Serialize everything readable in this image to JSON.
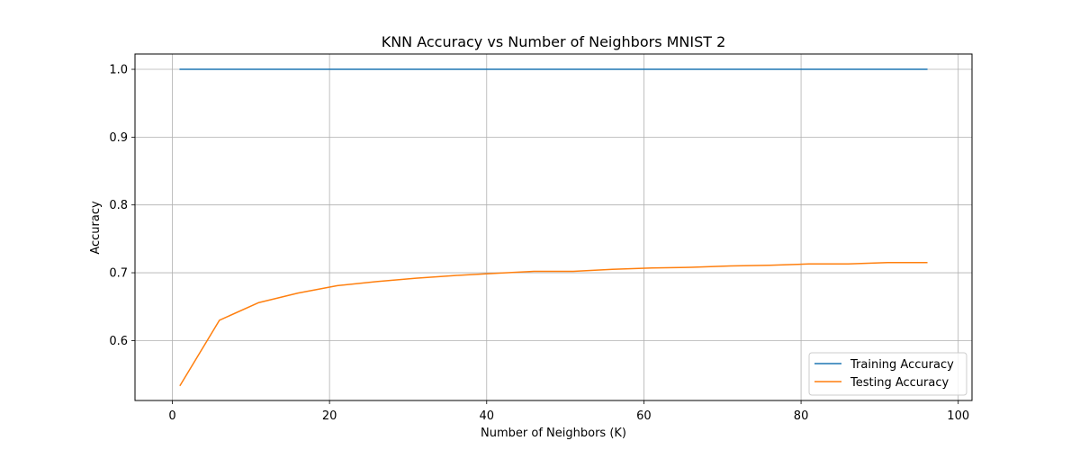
{
  "chart_data": {
    "type": "line",
    "title": "KNN Accuracy vs Number of Neighbors MNIST 2",
    "xlabel": "Number of Neighbors (K)",
    "ylabel": "Accuracy",
    "xlim": [
      -4.75,
      101.75
    ],
    "ylim": [
      0.5116,
      1.0226
    ],
    "xticks": [
      0,
      20,
      40,
      60,
      80,
      100
    ],
    "yticks": [
      0.6,
      0.7,
      0.8,
      0.9,
      1.0
    ],
    "xtick_labels": [
      "0",
      "20",
      "40",
      "60",
      "80",
      "100"
    ],
    "ytick_labels": [
      "0.6",
      "0.7",
      "0.8",
      "0.9",
      "1.0"
    ],
    "grid": true,
    "legend_position": "lower-right",
    "x": [
      1,
      6,
      11,
      16,
      21,
      26,
      31,
      36,
      41,
      46,
      51,
      56,
      61,
      66,
      71,
      76,
      81,
      86,
      91,
      96
    ],
    "series": [
      {
        "name": "Training Accuracy",
        "color": "#1f77b4",
        "values": [
          1.0,
          1.0,
          1.0,
          1.0,
          1.0,
          1.0,
          1.0,
          1.0,
          1.0,
          1.0,
          1.0,
          1.0,
          1.0,
          1.0,
          1.0,
          1.0,
          1.0,
          1.0,
          1.0,
          1.0
        ]
      },
      {
        "name": "Testing Accuracy",
        "color": "#ff7f0e",
        "values": [
          0.534,
          0.63,
          0.656,
          0.67,
          0.681,
          0.687,
          0.692,
          0.696,
          0.699,
          0.702,
          0.702,
          0.705,
          0.707,
          0.708,
          0.71,
          0.711,
          0.713,
          0.713,
          0.715,
          0.715
        ]
      }
    ]
  }
}
